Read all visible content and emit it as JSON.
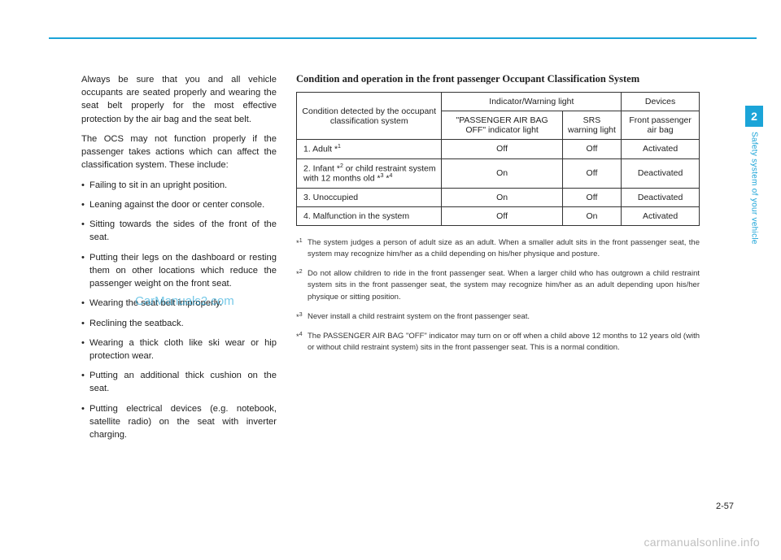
{
  "left": {
    "p1": "Always be sure that you and all vehicle occupants are seated properly and wearing the seat belt properly for the most effective protection by the air bag and the seat belt.",
    "p2": "The OCS may not function properly if the passenger takes actions which can affect the classification system. These include:",
    "bullets": [
      "Failing to sit in an upright position.",
      "Leaning against the door or center console.",
      "Sitting towards the sides of the front of the seat.",
      "Putting their legs on the dashboard or resting them on other locations which reduce the passenger weight on the front seat.",
      "Wearing the seat belt improperly.",
      "Reclining the seatback.",
      "Wearing a thick cloth like ski wear or hip protection wear.",
      "Putting an additional thick cushion on the seat.",
      "Putting electrical devices (e.g. notebook, satellite radio) on the seat with inverter charging."
    ]
  },
  "right": {
    "title": "Condition and operation in the front passenger Occupant Classification System",
    "headers": {
      "condition": "Condition detected by the occupant classification system",
      "indicator_group": "Indicator/Warning light",
      "devices": "Devices",
      "passenger_off": "\"PASSENGER AIR BAG OFF\" indicator light",
      "srs": "SRS warning light",
      "front_airbag": "Front passenger air bag"
    },
    "rows": [
      {
        "cond": "1. Adult *",
        "sup": "1",
        "a": "Off",
        "b": "Off",
        "c": "Activated"
      },
      {
        "cond": "2. Infant *",
        "sup": "2",
        "cond2": " or child restraint system with 12 months old *",
        "sup2": "3",
        "sup3": "4",
        "a": "On",
        "b": "Off",
        "c": "Deactivated"
      },
      {
        "cond": "3. Unoccupied",
        "a": "On",
        "b": "Off",
        "c": "Deactivated"
      },
      {
        "cond": "4. Malfunction in the system",
        "a": "Off",
        "b": "On",
        "c": "Activated"
      }
    ],
    "footnotes": {
      "f1": "The system judges a person of adult size as an adult. When a smaller adult sits in the front passenger seat, the system may recognize him/her as a child depending on his/her physique and posture.",
      "f2": "Do not allow children to ride in the front passenger seat. When a larger child who has outgrown a child restraint system sits in the front passenger seat, the system may recognize him/her as an adult depending upon his/her physique or sitting position.",
      "f3": "Never install a child restraint system on the front passenger seat.",
      "f4": "The PASSENGER AIR BAG \"OFF\" indicator may turn on or off when a child above 12 months to 12 years old (with or without child restraint system) sits in the front passenger seat. This is a normal condition."
    }
  },
  "sidebar": {
    "chapter": "2",
    "label": "Safety system of your vehicle"
  },
  "pagenum": "2-57",
  "watermark_bottom": "carmanualsonline.info",
  "watermark_center": "CarManuals2.com"
}
